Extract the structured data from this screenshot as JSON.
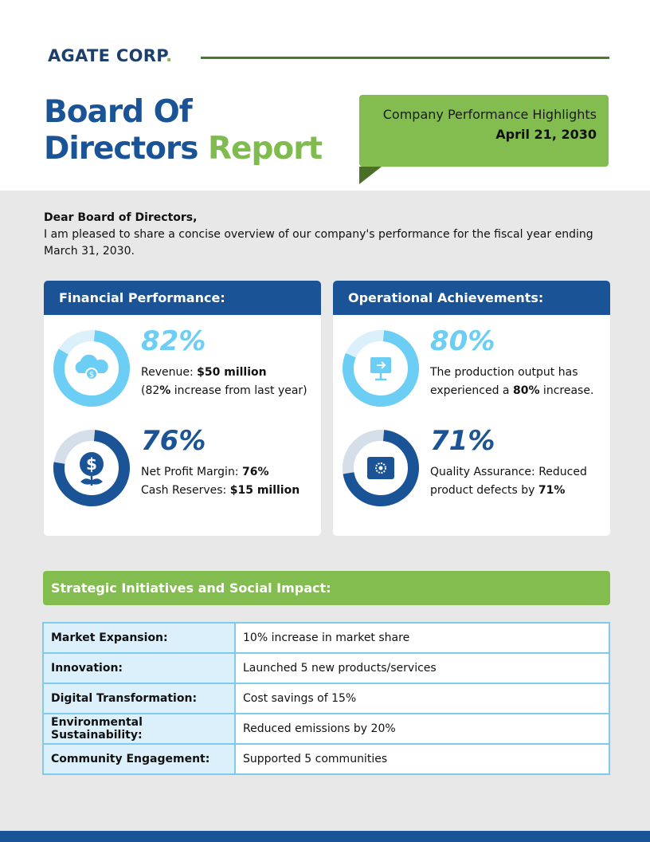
{
  "header": {
    "logo": "AGATE CORP",
    "logo_dot": ".",
    "title_line1": "Board Of",
    "title_line2_blue": "Directors",
    "title_line2_green": "Report",
    "banner_subtitle": "Company Performance Highlights",
    "banner_date": "April 21, 2030"
  },
  "intro": {
    "greeting": "Dear Board of Directors,",
    "text": "I am pleased to share a concise overview of our company's performance for the fiscal year ending March 31, 2030."
  },
  "financial": {
    "title": "Financial Performance:",
    "items": [
      {
        "percent": 82,
        "label": "82%",
        "icon": "cloud-dollar-icon",
        "color": "#6ccdf5",
        "track": "#dbf0fa",
        "l1a": "Revenue: ",
        "l1b": "$50 million",
        "l2a": "(82",
        "l2b": "%",
        "l2c": " increase from last year)"
      },
      {
        "percent": 76,
        "label": "76%",
        "icon": "dollar-plant-icon",
        "color": "#1a5496",
        "track": "#d5dfea",
        "l1a": "Net Profit Margin: ",
        "l1b": "76%",
        "l2a": "Cash Reserves: ",
        "l2b": "$15 million",
        "l2c": ""
      }
    ]
  },
  "operational": {
    "title": "Operational Achievements:",
    "items": [
      {
        "percent": 80,
        "label": "80%",
        "icon": "monitor-arrow-icon",
        "color": "#6ccdf5",
        "track": "#dbf0fa",
        "l1a": "The production output has",
        "l1b": "",
        "l2a": "experienced a ",
        "l2b": "80%",
        "l2c": " increase."
      },
      {
        "percent": 71,
        "label": "71%",
        "icon": "quality-badge-icon",
        "color": "#1a5496",
        "track": "#d5dfea",
        "l1a": "Quality Assurance: Reduced",
        "l1b": "",
        "l2a": "product defects by ",
        "l2b": "71%",
        "l2c": ""
      }
    ]
  },
  "strategic": {
    "title": "Strategic Initiatives and Social Impact:",
    "rows": [
      [
        "Market Expansion:",
        "10% increase in market share"
      ],
      [
        "Innovation:",
        "Launched 5 new products/services"
      ],
      [
        "Digital Transformation:",
        "Cost savings of 15%"
      ],
      [
        "Environmental Sustainability:",
        "Reduced emissions by 20%"
      ],
      [
        "Community Engagement:",
        "Supported 5 communities"
      ]
    ]
  }
}
